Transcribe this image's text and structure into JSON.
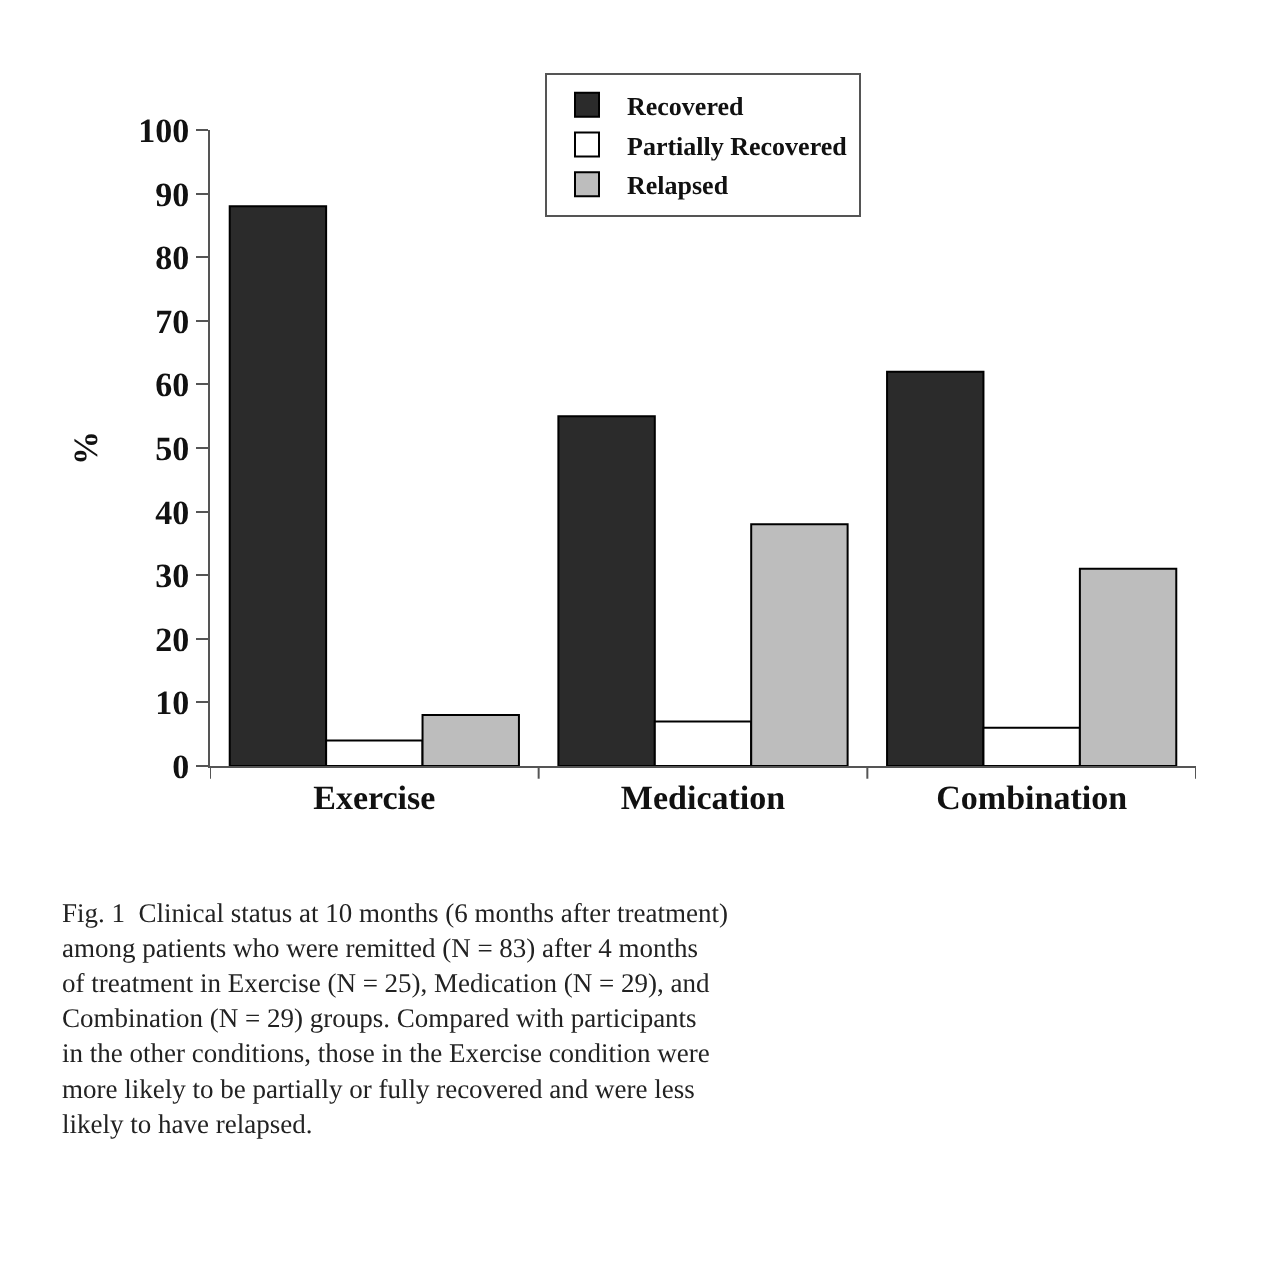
{
  "chart_data": {
    "type": "bar",
    "ylabel": "%",
    "categories": [
      "Exercise",
      "Medication",
      "Combination"
    ],
    "series": [
      {
        "name": "Recovered",
        "color": "#2b2b2b",
        "values": [
          88,
          55,
          62
        ]
      },
      {
        "name": "Partially Recovered",
        "color": "#ffffff",
        "values": [
          4,
          7,
          6
        ]
      },
      {
        "name": "Relapsed",
        "color": "#bdbdbd",
        "values": [
          8,
          38,
          31
        ]
      }
    ],
    "ylim": [
      0,
      100
    ],
    "yticks": [
      0,
      10,
      20,
      30,
      40,
      50,
      60,
      70,
      80,
      90,
      100
    ],
    "legend": "top",
    "annotations": [
      "Fig. 1  Clinical status at 10 months (6 months after treatment)\namong patients who were remitted (N = 83) after 4 months\nof treatment in Exercise (N = 25), Medication (N = 29), and\nCombination (N = 29) groups. Compared with participants\nin the other conditions, those in the Exercise condition were\nmore likely to be partially or fully recovered and were less\nlikely to have relapsed."
    ]
  }
}
